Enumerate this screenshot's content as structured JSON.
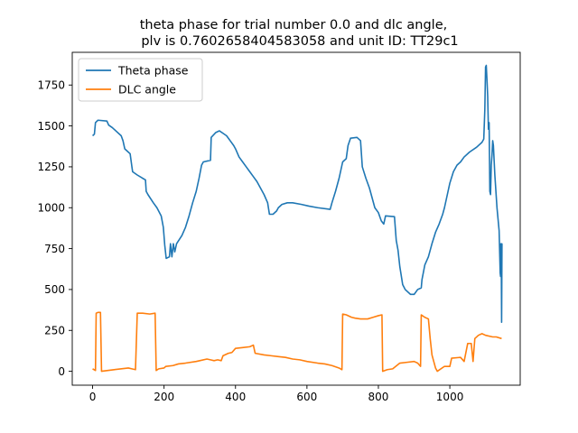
{
  "chart_data": {
    "type": "line",
    "title_lines": [
      "theta phase for trial number 0.0 and dlc angle,",
      "plv is 0.7602658404583058 and unit ID: TT29c1"
    ],
    "xlabel": "",
    "ylabel": "",
    "xlim": [
      -57,
      1197
    ],
    "ylim": [
      -85,
      1950
    ],
    "x_ticks": [
      0,
      200,
      400,
      600,
      800,
      1000
    ],
    "y_ticks": [
      0,
      250,
      500,
      750,
      1000,
      1250,
      1500,
      1750
    ],
    "grid": false,
    "legend_position": "upper-left",
    "series": [
      {
        "name": "Theta phase",
        "color": "#1f77b4",
        "points": [
          [
            0,
            1440
          ],
          [
            5,
            1450
          ],
          [
            8,
            1520
          ],
          [
            15,
            1535
          ],
          [
            40,
            1530
          ],
          [
            45,
            1505
          ],
          [
            55,
            1490
          ],
          [
            65,
            1470
          ],
          [
            80,
            1440
          ],
          [
            85,
            1410
          ],
          [
            90,
            1360
          ],
          [
            100,
            1340
          ],
          [
            105,
            1330
          ],
          [
            110,
            1250
          ],
          [
            112,
            1220
          ],
          [
            125,
            1200
          ],
          [
            140,
            1180
          ],
          [
            148,
            1170
          ],
          [
            150,
            1100
          ],
          [
            155,
            1080
          ],
          [
            170,
            1030
          ],
          [
            180,
            1000
          ],
          [
            192,
            950
          ],
          [
            198,
            880
          ],
          [
            202,
            770
          ],
          [
            206,
            690
          ],
          [
            215,
            700
          ],
          [
            218,
            780
          ],
          [
            222,
            700
          ],
          [
            226,
            780
          ],
          [
            230,
            730
          ],
          [
            235,
            780
          ],
          [
            250,
            830
          ],
          [
            260,
            880
          ],
          [
            270,
            950
          ],
          [
            280,
            1030
          ],
          [
            290,
            1100
          ],
          [
            298,
            1180
          ],
          [
            305,
            1260
          ],
          [
            310,
            1280
          ],
          [
            330,
            1290
          ],
          [
            332,
            1430
          ],
          [
            345,
            1460
          ],
          [
            355,
            1470
          ],
          [
            365,
            1455
          ],
          [
            375,
            1440
          ],
          [
            385,
            1410
          ],
          [
            395,
            1380
          ],
          [
            400,
            1360
          ],
          [
            410,
            1310
          ],
          [
            420,
            1280
          ],
          [
            430,
            1250
          ],
          [
            440,
            1220
          ],
          [
            450,
            1190
          ],
          [
            460,
            1160
          ],
          [
            470,
            1120
          ],
          [
            480,
            1080
          ],
          [
            490,
            1030
          ],
          [
            495,
            960
          ],
          [
            505,
            960
          ],
          [
            515,
            980
          ],
          [
            520,
            1000
          ],
          [
            530,
            1020
          ],
          [
            545,
            1030
          ],
          [
            560,
            1030
          ],
          [
            585,
            1020
          ],
          [
            605,
            1010
          ],
          [
            630,
            1000
          ],
          [
            665,
            990
          ],
          [
            670,
            1030
          ],
          [
            680,
            1100
          ],
          [
            690,
            1180
          ],
          [
            700,
            1280
          ],
          [
            710,
            1300
          ],
          [
            715,
            1380
          ],
          [
            722,
            1425
          ],
          [
            740,
            1430
          ],
          [
            750,
            1410
          ],
          [
            755,
            1250
          ],
          [
            765,
            1180
          ],
          [
            775,
            1120
          ],
          [
            790,
            1000
          ],
          [
            800,
            970
          ],
          [
            808,
            920
          ],
          [
            815,
            900
          ],
          [
            820,
            950
          ],
          [
            845,
            945
          ],
          [
            850,
            800
          ],
          [
            855,
            740
          ],
          [
            860,
            640
          ],
          [
            868,
            530
          ],
          [
            875,
            500
          ],
          [
            890,
            470
          ],
          [
            900,
            470
          ],
          [
            910,
            500
          ],
          [
            920,
            510
          ],
          [
            922,
            560
          ],
          [
            930,
            650
          ],
          [
            940,
            700
          ],
          [
            950,
            780
          ],
          [
            960,
            850
          ],
          [
            970,
            900
          ],
          [
            980,
            960
          ],
          [
            985,
            1000
          ],
          [
            995,
            1100
          ],
          [
            1000,
            1150
          ],
          [
            1010,
            1220
          ],
          [
            1020,
            1260
          ],
          [
            1030,
            1280
          ],
          [
            1040,
            1310
          ],
          [
            1055,
            1340
          ],
          [
            1075,
            1370
          ],
          [
            1090,
            1400
          ],
          [
            1095,
            1420
          ],
          [
            1098,
            1600
          ],
          [
            1100,
            1860
          ],
          [
            1102,
            1870
          ],
          [
            1104,
            1780
          ],
          [
            1106,
            1680
          ],
          [
            1108,
            1480
          ],
          [
            1110,
            1520
          ],
          [
            1112,
            1100
          ],
          [
            1114,
            1080
          ],
          [
            1116,
            1260
          ],
          [
            1118,
            1320
          ],
          [
            1120,
            1410
          ],
          [
            1122,
            1380
          ],
          [
            1126,
            1200
          ],
          [
            1132,
            1000
          ],
          [
            1138,
            860
          ],
          [
            1141,
            600
          ],
          [
            1142,
            580
          ],
          [
            1143,
            780
          ],
          [
            1144,
            680
          ],
          [
            1145,
            300
          ],
          [
            1146,
            780
          ],
          [
            1147,
            780
          ]
        ]
      },
      {
        "name": "DLC angle",
        "color": "#ff7f0e",
        "points": [
          [
            0,
            15
          ],
          [
            8,
            5
          ],
          [
            10,
            355
          ],
          [
            15,
            360
          ],
          [
            22,
            360
          ],
          [
            25,
            0
          ],
          [
            60,
            10
          ],
          [
            100,
            20
          ],
          [
            110,
            15
          ],
          [
            120,
            10
          ],
          [
            125,
            355
          ],
          [
            140,
            355
          ],
          [
            160,
            350
          ],
          [
            175,
            355
          ],
          [
            178,
            5
          ],
          [
            185,
            15
          ],
          [
            200,
            20
          ],
          [
            205,
            30
          ],
          [
            225,
            35
          ],
          [
            240,
            45
          ],
          [
            260,
            50
          ],
          [
            290,
            60
          ],
          [
            300,
            65
          ],
          [
            320,
            75
          ],
          [
            330,
            70
          ],
          [
            340,
            65
          ],
          [
            350,
            70
          ],
          [
            360,
            65
          ],
          [
            365,
            95
          ],
          [
            380,
            110
          ],
          [
            390,
            115
          ],
          [
            400,
            140
          ],
          [
            420,
            145
          ],
          [
            440,
            150
          ],
          [
            450,
            160
          ],
          [
            455,
            110
          ],
          [
            480,
            100
          ],
          [
            500,
            95
          ],
          [
            520,
            90
          ],
          [
            540,
            85
          ],
          [
            560,
            75
          ],
          [
            580,
            70
          ],
          [
            600,
            60
          ],
          [
            630,
            50
          ],
          [
            650,
            45
          ],
          [
            670,
            35
          ],
          [
            690,
            20
          ],
          [
            698,
            10
          ],
          [
            700,
            350
          ],
          [
            710,
            345
          ],
          [
            725,
            330
          ],
          [
            735,
            325
          ],
          [
            750,
            320
          ],
          [
            770,
            320
          ],
          [
            785,
            330
          ],
          [
            800,
            340
          ],
          [
            810,
            345
          ],
          [
            812,
            0
          ],
          [
            825,
            10
          ],
          [
            840,
            15
          ],
          [
            860,
            50
          ],
          [
            880,
            55
          ],
          [
            900,
            60
          ],
          [
            910,
            50
          ],
          [
            918,
            30
          ],
          [
            920,
            345
          ],
          [
            930,
            330
          ],
          [
            940,
            320
          ],
          [
            945,
            200
          ],
          [
            950,
            100
          ],
          [
            960,
            20
          ],
          [
            965,
            0
          ],
          [
            985,
            30
          ],
          [
            1000,
            30
          ],
          [
            1005,
            80
          ],
          [
            1030,
            85
          ],
          [
            1040,
            60
          ],
          [
            1050,
            170
          ],
          [
            1060,
            170
          ],
          [
            1065,
            60
          ],
          [
            1070,
            200
          ],
          [
            1080,
            220
          ],
          [
            1090,
            230
          ],
          [
            1100,
            220
          ],
          [
            1120,
            210
          ],
          [
            1130,
            210
          ],
          [
            1145,
            200
          ]
        ]
      }
    ]
  }
}
